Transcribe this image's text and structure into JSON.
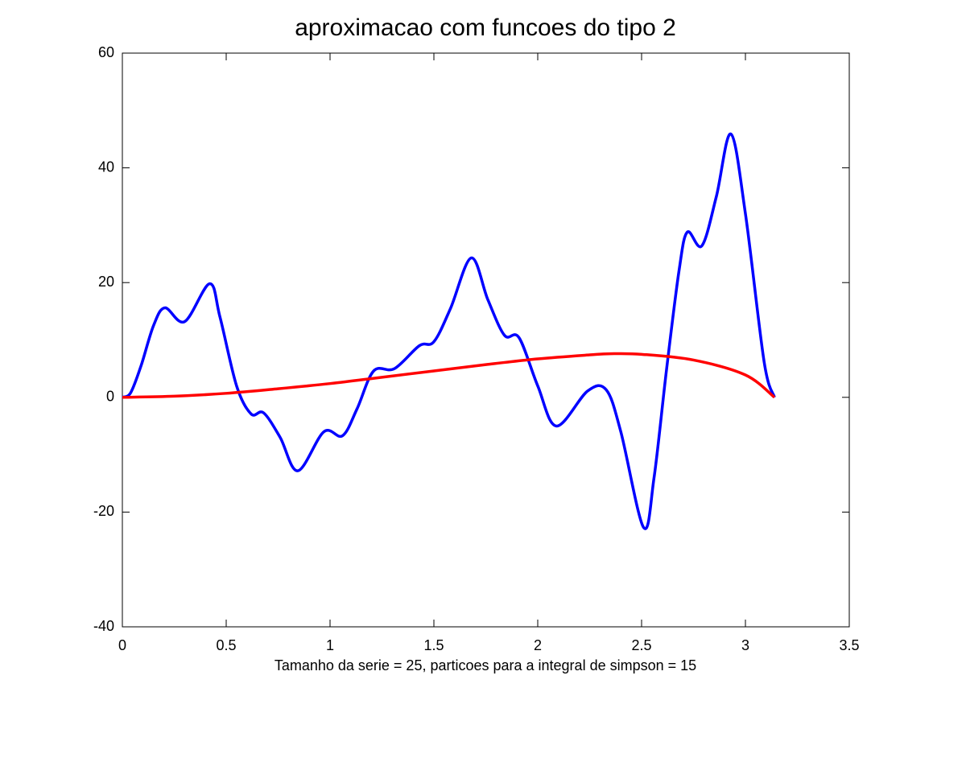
{
  "chart_data": {
    "type": "line",
    "title": "aproximacao com funcoes do tipo 2",
    "xlabel": "Tamanho da serie = 25, particoes para a integral de simpson = 15",
    "xlim": [
      0,
      3.5
    ],
    "xticks": [
      0,
      0.5,
      1,
      1.5,
      2,
      2.5,
      3,
      3.5
    ],
    "ylim": [
      -40,
      60
    ],
    "yticks": [
      -40,
      -20,
      0,
      20,
      40,
      60
    ],
    "series": [
      {
        "color": "#0000ff",
        "x": [
          0,
          0.04,
          0.09,
          0.15,
          0.205,
          0.3,
          0.42,
          0.47,
          0.55,
          0.62,
          0.68,
          0.76,
          0.845,
          0.97,
          1.06,
          1.13,
          1.21,
          1.31,
          1.43,
          1.5,
          1.58,
          1.68,
          1.76,
          1.84,
          1.91,
          2.0,
          2.09,
          2.24,
          2.33,
          2.4,
          2.51,
          2.56,
          2.62,
          2.68,
          2.72,
          2.79,
          2.86,
          2.93,
          3.0,
          3.09,
          3.14
        ],
        "values": [
          0,
          0.8,
          5.5,
          12.5,
          15.6,
          13.2,
          19.8,
          14,
          2,
          -2.9,
          -2.7,
          -7,
          -12.8,
          -6,
          -6.7,
          -2,
          4.6,
          5,
          9,
          9.7,
          15.5,
          24.3,
          17,
          10.8,
          10.4,
          2,
          -5,
          1.1,
          1.3,
          -6,
          -22.7,
          -14,
          4.8,
          22,
          28.8,
          26.4,
          35,
          45.9,
          32,
          6.2,
          0
        ]
      },
      {
        "color": "#ff0000",
        "x": [
          0,
          0.25,
          0.5,
          0.75,
          1.0,
          1.25,
          1.5,
          1.75,
          2.0,
          2.25,
          2.35,
          2.5,
          2.75,
          3.0,
          3.14
        ],
        "values": [
          0,
          0.2,
          0.7,
          1.5,
          2.4,
          3.5,
          4.6,
          5.7,
          6.7,
          7.4,
          7.6,
          7.5,
          6.5,
          3.9,
          0
        ]
      }
    ]
  }
}
